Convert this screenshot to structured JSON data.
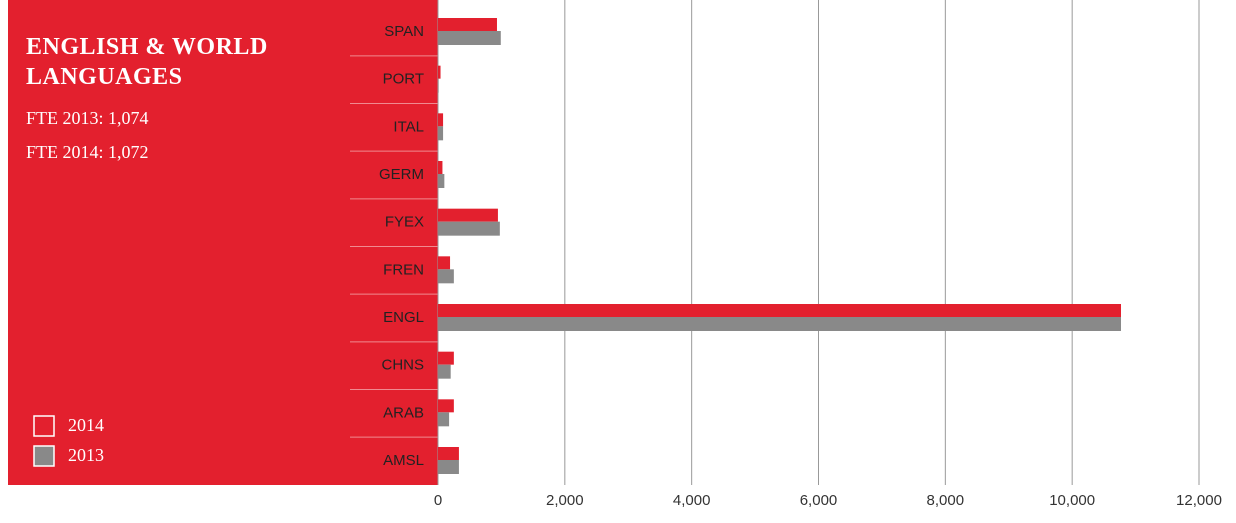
{
  "chart_data": {
    "type": "bar",
    "orientation": "horizontal",
    "title": "ENGLISH & WORLD LANGUAGES",
    "annotations": [
      "FTE 2013: 1,074",
      "FTE 2014: 1,072"
    ],
    "categories": [
      "SPAN",
      "PORT",
      "ITAL",
      "GERM",
      "FYEX",
      "FREN",
      "ENGL",
      "CHNS",
      "ARAB",
      "AMSL"
    ],
    "series": [
      {
        "name": "2014",
        "color": "#e3202e",
        "values": [
          930,
          40,
          80,
          70,
          945,
          190,
          10770,
          250,
          250,
          330
        ]
      },
      {
        "name": "2013",
        "color": "#898989",
        "values": [
          990,
          10,
          80,
          100,
          975,
          250,
          10770,
          200,
          175,
          330
        ]
      }
    ],
    "xlim": [
      0,
      12000
    ],
    "xticks": [
      0,
      {
        "value": 2000,
        "label": "2,000"
      },
      {
        "value": 4000,
        "label": "4,000"
      },
      {
        "value": 6000,
        "label": "6,000"
      },
      {
        "value": 8000,
        "label": "8,000"
      },
      {
        "value": 10000,
        "label": "10,000"
      },
      {
        "value": 12000,
        "label": "12,000"
      }
    ],
    "grid": true,
    "legend": "lower left"
  }
}
